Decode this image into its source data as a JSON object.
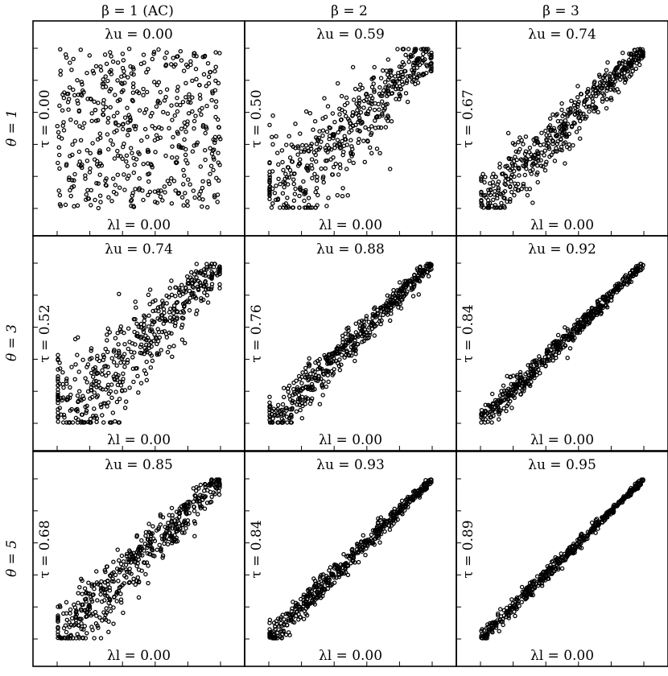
{
  "figure": {
    "column_titles": [
      "β = 1 (AC)",
      "β = 2",
      "β = 3"
    ],
    "row_titles": [
      "θ = 1",
      "θ = 3",
      "θ = 5"
    ]
  },
  "chart_data": {
    "type": "scatter",
    "layout": "3x3 grid of copula scatter panels",
    "xlim": [
      0,
      1
    ],
    "ylim": [
      0,
      1
    ],
    "grid": false,
    "legend": "none",
    "panels": [
      {
        "row": 0,
        "col": 0,
        "theta": 1,
        "beta": 1,
        "tau_label": "τ = 0.00",
        "lambda_u_label": "λu = 0.00",
        "lambda_l_label": "λl = 0.00",
        "tau": 0.0,
        "lambda_u": 0.0,
        "lambda_l": 0.0,
        "n_points": 500,
        "seed": 11
      },
      {
        "row": 0,
        "col": 1,
        "theta": 1,
        "beta": 2,
        "tau_label": "τ = 0.50",
        "lambda_u_label": "λu = 0.59",
        "lambda_l_label": "λl = 0.00",
        "tau": 0.5,
        "lambda_u": 0.59,
        "lambda_l": 0.0,
        "n_points": 500,
        "seed": 12
      },
      {
        "row": 0,
        "col": 2,
        "theta": 1,
        "beta": 3,
        "tau_label": "τ = 0.67",
        "lambda_u_label": "λu = 0.74",
        "lambda_l_label": "λl = 0.00",
        "tau": 0.67,
        "lambda_u": 0.74,
        "lambda_l": 0.0,
        "n_points": 500,
        "seed": 13
      },
      {
        "row": 1,
        "col": 0,
        "theta": 3,
        "beta": 1,
        "tau_label": "τ = 0.52",
        "lambda_u_label": "λu = 0.74",
        "lambda_l_label": "λl = 0.00",
        "tau": 0.52,
        "lambda_u": 0.74,
        "lambda_l": 0.0,
        "n_points": 500,
        "seed": 21
      },
      {
        "row": 1,
        "col": 1,
        "theta": 3,
        "beta": 2,
        "tau_label": "τ = 0.76",
        "lambda_u_label": "λu = 0.88",
        "lambda_l_label": "λl = 0.00",
        "tau": 0.76,
        "lambda_u": 0.88,
        "lambda_l": 0.0,
        "n_points": 500,
        "seed": 22
      },
      {
        "row": 1,
        "col": 2,
        "theta": 3,
        "beta": 3,
        "tau_label": "τ = 0.84",
        "lambda_u_label": "λu = 0.92",
        "lambda_l_label": "λl = 0.00",
        "tau": 0.84,
        "lambda_u": 0.92,
        "lambda_l": 0.0,
        "n_points": 500,
        "seed": 23
      },
      {
        "row": 2,
        "col": 0,
        "theta": 5,
        "beta": 1,
        "tau_label": "τ = 0.68",
        "lambda_u_label": "λu = 0.85",
        "lambda_l_label": "λl = 0.00",
        "tau": 0.68,
        "lambda_u": 0.85,
        "lambda_l": 0.0,
        "n_points": 500,
        "seed": 31
      },
      {
        "row": 2,
        "col": 1,
        "theta": 5,
        "beta": 2,
        "tau_label": "τ = 0.84",
        "lambda_u_label": "λu = 0.93",
        "lambda_l_label": "λl = 0.00",
        "tau": 0.84,
        "lambda_u": 0.93,
        "lambda_l": 0.0,
        "n_points": 500,
        "seed": 32
      },
      {
        "row": 2,
        "col": 2,
        "theta": 5,
        "beta": 3,
        "tau_label": "τ = 0.89",
        "lambda_u_label": "λu = 0.95",
        "lambda_l_label": "λl = 0.00",
        "tau": 0.89,
        "lambda_u": 0.95,
        "lambda_l": 0.0,
        "n_points": 500,
        "seed": 33
      }
    ]
  }
}
